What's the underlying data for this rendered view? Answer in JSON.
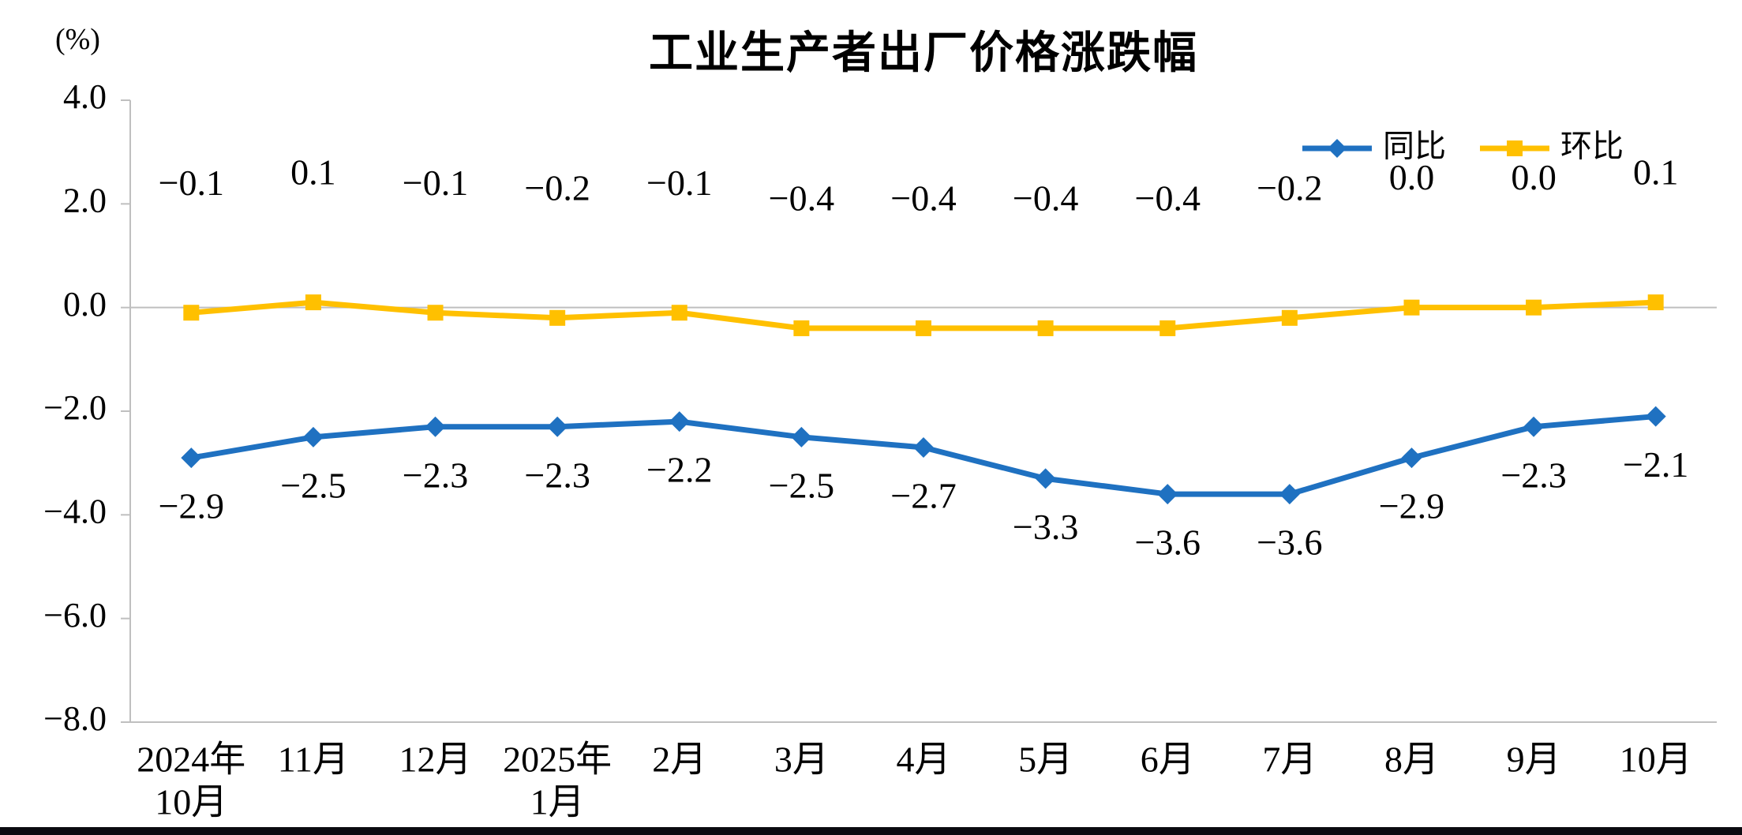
{
  "page": {
    "background": "#ffffff",
    "bottom_bar_color": "#0a0a10"
  },
  "chart_data": {
    "type": "line",
    "title": "工业生产者出厂价格涨跌幅",
    "y_unit": "(%)",
    "categories": [
      "2024年\n10月",
      "11月",
      "12月",
      "2025年\n1月",
      "2月",
      "3月",
      "4月",
      "5月",
      "6月",
      "7月",
      "8月",
      "9月",
      "10月"
    ],
    "series": [
      {
        "id": "yoy",
        "name": "同比",
        "color": "#1F71C1",
        "marker": "diamond",
        "label_position": "below",
        "values": [
          -2.9,
          -2.5,
          -2.3,
          -2.3,
          -2.2,
          -2.5,
          -2.7,
          -3.3,
          -3.6,
          -3.6,
          -2.9,
          -2.3,
          -2.1
        ],
        "labels": [
          "−2.9",
          "−2.5",
          "−2.3",
          "−2.3",
          "−2.2",
          "−2.5",
          "−2.7",
          "−3.3",
          "−3.6",
          "−3.6",
          "−2.9",
          "−2.3",
          "−2.1"
        ]
      },
      {
        "id": "mom",
        "name": "环比",
        "color": "#FFC000",
        "marker": "square",
        "label_position": "above",
        "values": [
          -0.1,
          0.1,
          -0.1,
          -0.2,
          -0.1,
          -0.4,
          -0.4,
          -0.4,
          -0.4,
          -0.2,
          0.0,
          0.0,
          0.1
        ],
        "labels": [
          "−0.1",
          "0.1",
          "−0.1",
          "−0.2",
          "−0.1",
          "−0.4",
          "−0.4",
          "−0.4",
          "−0.4",
          "−0.2",
          "0.0",
          "0.0",
          "0.1"
        ]
      }
    ],
    "ylim": [
      -8.0,
      4.0
    ],
    "ytick_values": [
      4,
      2,
      0,
      -2,
      -4,
      -6,
      -8
    ],
    "yticks": [
      "4.0",
      "2.0",
      "0.0",
      "−2.0",
      "−4.0",
      "−6.0",
      "−8.0"
    ],
    "colors": {
      "axis": "#BFBFBF",
      "text": "#000000"
    },
    "grid": "zero-line-only",
    "legend_position": "top-right"
  }
}
